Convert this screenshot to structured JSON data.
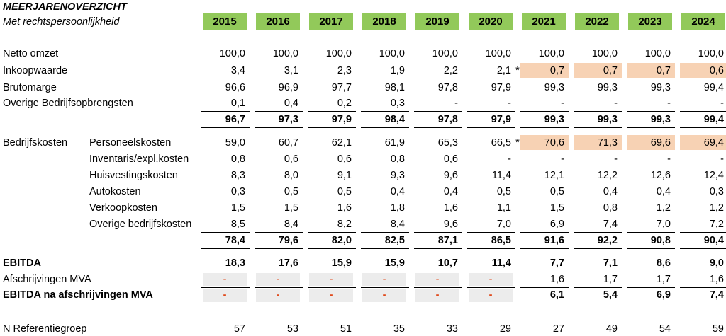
{
  "title": "MEERJARENOVERZICHT",
  "subtitle": "Met rechtspersoonlijkheid",
  "header_color": "#92c95a",
  "highlight_color": "#f7d2b4",
  "years": [
    "2015",
    "2016",
    "2017",
    "2018",
    "2019",
    "2020",
    "2021",
    "2022",
    "2023",
    "2024"
  ],
  "rows": [
    {
      "label": "Netto omzet",
      "values": [
        "100,0",
        "100,0",
        "100,0",
        "100,0",
        "100,0",
        "100,0",
        "100,0",
        "100,0",
        "100,0",
        "100,0"
      ]
    },
    {
      "label": "Inkoopwaarde",
      "marker": "*",
      "values": [
        "3,4",
        "3,1",
        "2,3",
        "1,9",
        "2,2",
        "2,1",
        "0,7",
        "0,7",
        "0,7",
        "0,6"
      ]
    },
    {
      "label": "Brutomarge",
      "values": [
        "96,6",
        "96,9",
        "97,7",
        "98,1",
        "97,8",
        "97,9",
        "99,3",
        "99,3",
        "99,3",
        "99,4"
      ]
    },
    {
      "label": "Overige Bedrijfsopbrengsten",
      "values": [
        "0,1",
        "0,4",
        "0,2",
        "0,3",
        "-",
        "-",
        "-",
        "-",
        "-",
        "-"
      ]
    },
    {
      "label": "",
      "bold": true,
      "values": [
        "96,7",
        "97,3",
        "97,9",
        "98,4",
        "97,8",
        "97,9",
        "99,3",
        "99,3",
        "99,3",
        "99,4"
      ]
    },
    {
      "group": "Bedrijfskosten",
      "label": "Personeelskosten",
      "marker": "*",
      "values": [
        "59,0",
        "60,7",
        "62,1",
        "61,9",
        "65,3",
        "66,5",
        "70,6",
        "71,3",
        "69,6",
        "69,4"
      ]
    },
    {
      "label": "Inventaris/expl.kosten",
      "values": [
        "0,8",
        "0,6",
        "0,6",
        "0,8",
        "0,6",
        "-",
        "-",
        "-",
        "-",
        "-"
      ]
    },
    {
      "label": "Huisvestingskosten",
      "values": [
        "8,3",
        "8,0",
        "9,1",
        "9,3",
        "9,6",
        "11,4",
        "12,1",
        "12,2",
        "12,6",
        "12,4"
      ]
    },
    {
      "label": "Autokosten",
      "values": [
        "0,3",
        "0,5",
        "0,5",
        "0,4",
        "0,4",
        "0,5",
        "0,5",
        "0,4",
        "0,4",
        "0,3"
      ]
    },
    {
      "label": "Verkoopkosten",
      "values": [
        "1,5",
        "1,5",
        "1,6",
        "1,8",
        "1,6",
        "1,1",
        "1,5",
        "0,8",
        "1,2",
        "1,2"
      ]
    },
    {
      "label": "Overige bedrijfskosten",
      "values": [
        "8,5",
        "8,4",
        "8,2",
        "8,4",
        "9,6",
        "7,0",
        "6,9",
        "7,4",
        "7,0",
        "7,2"
      ]
    },
    {
      "label": "",
      "bold": true,
      "values": [
        "78,4",
        "79,6",
        "82,0",
        "82,5",
        "87,1",
        "86,5",
        "91,6",
        "92,2",
        "90,8",
        "90,4"
      ]
    },
    {
      "label": "EBITDA",
      "bold": true,
      "values": [
        "18,3",
        "17,6",
        "15,9",
        "15,9",
        "10,7",
        "11,4",
        "7,7",
        "7,1",
        "8,6",
        "9,0"
      ]
    },
    {
      "label": "Afschrijvingen MVA",
      "values": [
        "-",
        "-",
        "-",
        "-",
        "-",
        "-",
        "1,6",
        "1,7",
        "1,7",
        "1,6"
      ]
    },
    {
      "label": "EBITDA na afschrijvingen MVA",
      "bold": true,
      "values": [
        "-",
        "-",
        "-",
        "-",
        "-",
        "-",
        "6,1",
        "5,4",
        "6,9",
        "7,4"
      ]
    },
    {
      "label": "N Referentiegroep",
      "values": [
        "57",
        "53",
        "51",
        "35",
        "33",
        "29",
        "27",
        "49",
        "54",
        "59"
      ]
    }
  ]
}
